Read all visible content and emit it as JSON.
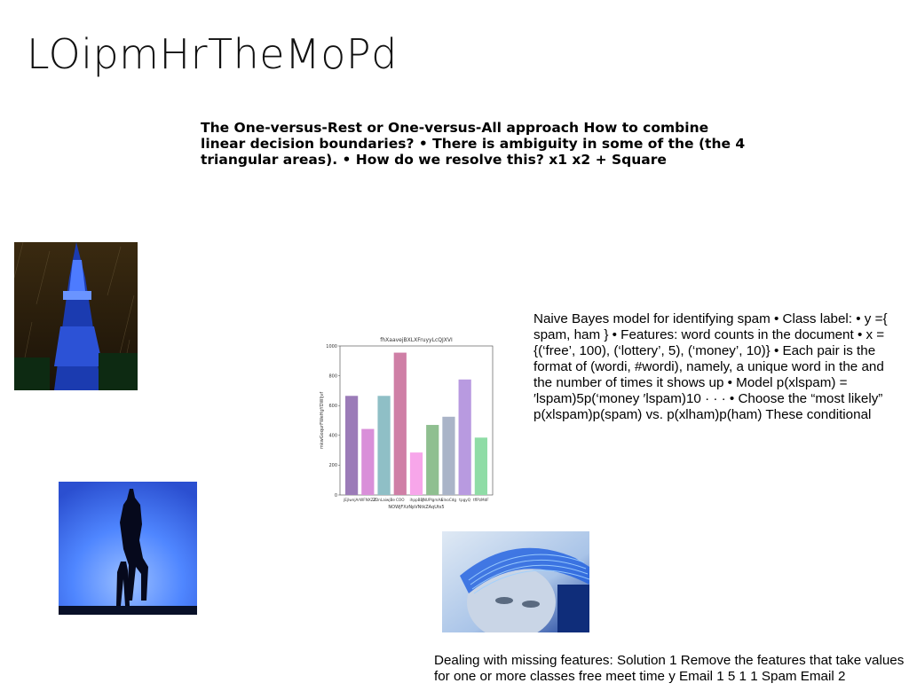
{
  "slide": {
    "title": "LOipmHrTheMoPd",
    "bold_text": "The One-versus-Rest or One-versus-All approach How to combine linear decision boundaries? • There is ambiguity in some of the (the 4 triangular areas). • How do we resolve this? x1 x2 + Square",
    "right_text": "Naive Bayes model for identifying spam • Class label: • y ={ spam, ham } • Features: word counts in the document • x = {(‘free’, 100), (‘lottery’, 5), (‘money’, 10)} • Each pair is the format of (wordi, #wordi), namely, a unique word in the and the number of times it shows up • Model p(xlspam) = ′lspam)5p(‘money ′lspam)10 · · · • Choose the “most likely” p(xlspam)p(spam) vs. p(xlham)p(ham) These conditional",
    "bottom_text": "Dealing with missing features: Solution 1 Remove the features that take values for one or more classes free meet time y Email 1 5 1 1 Spam Email 2"
  },
  "images": {
    "tower": "blue-lit-tower-photo",
    "silhouette": "horse-rider-silhouette-photo",
    "face": "face-with-light-visor-photo"
  },
  "chart_data": {
    "type": "bar",
    "title": "fhXaavejBXLXFruyyLcQJXVI",
    "xlabel": "NOWjFXzNpVNtkZAqUts5",
    "ylabel": "mkwGoqurFWeHgYDWIjvf",
    "categories": [
      "jEjlwnjAr",
      "WFNXZZ",
      "ZDnLaiwjBe",
      "COO",
      "ihppBB",
      "JNUPlgmAa",
      "ElnoCdg",
      "tpgyQ",
      "tflPzMdF"
    ],
    "values": [
      665,
      443,
      665,
      955,
      285,
      470,
      525,
      775,
      385
    ],
    "colors": [
      "#9b7bb8",
      "#d98fd9",
      "#8fbfc6",
      "#cf7fa6",
      "#f7a6ea",
      "#8fbf90",
      "#aab4c8",
      "#b89ae0",
      "#8fdca6"
    ],
    "yticks": [
      0,
      200,
      400,
      600,
      800,
      1000
    ],
    "ylim": [
      0,
      1000
    ],
    "grid": false
  }
}
